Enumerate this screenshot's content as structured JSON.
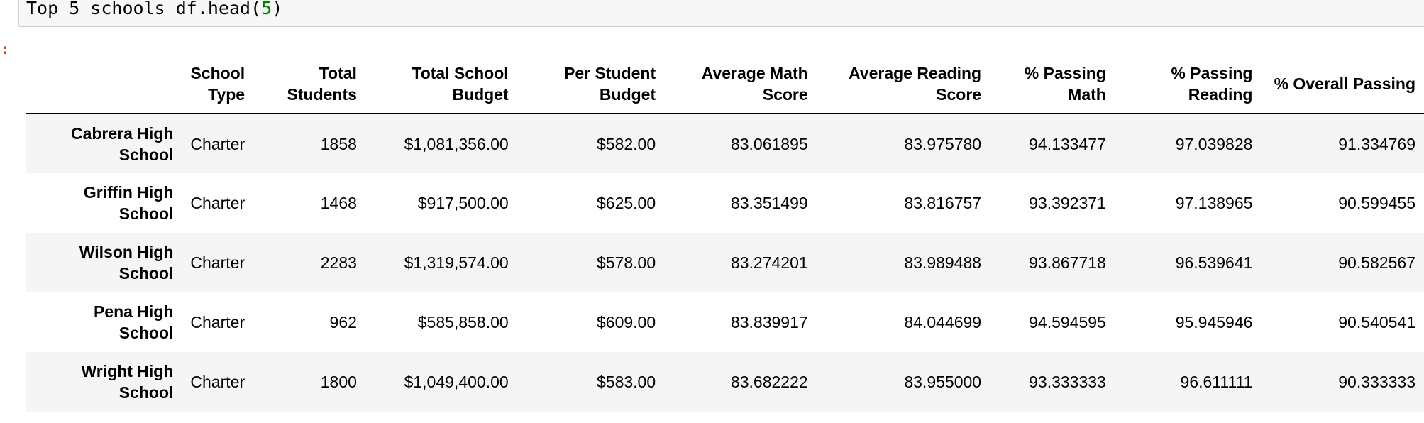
{
  "code_cell": {
    "prefix": "Top_5_schools_df.head(",
    "argument": "5",
    "suffix": ")"
  },
  "output_prompt": ":",
  "table": {
    "columns": [
      "",
      "School Type",
      "Total Students",
      "Total School Budget",
      "Per Student Budget",
      "Average Math Score",
      "Average Reading Score",
      "% Passing Math",
      "% Passing Reading",
      "% Overall Passing"
    ],
    "rows": [
      {
        "index": "Cabrera High School",
        "cells": [
          "Charter",
          "1858",
          "$1,081,356.00",
          "$582.00",
          "83.061895",
          "83.975780",
          "94.133477",
          "97.039828",
          "91.334769"
        ]
      },
      {
        "index": "Griffin High School",
        "cells": [
          "Charter",
          "1468",
          "$917,500.00",
          "$625.00",
          "83.351499",
          "83.816757",
          "93.392371",
          "97.138965",
          "90.599455"
        ]
      },
      {
        "index": "Wilson High School",
        "cells": [
          "Charter",
          "2283",
          "$1,319,574.00",
          "$578.00",
          "83.274201",
          "83.989488",
          "93.867718",
          "96.539641",
          "90.582567"
        ]
      },
      {
        "index": "Pena High School",
        "cells": [
          "Charter",
          "962",
          "$585,858.00",
          "$609.00",
          "83.839917",
          "84.044699",
          "94.594595",
          "95.945946",
          "90.540541"
        ]
      },
      {
        "index": "Wright High School",
        "cells": [
          "Charter",
          "1800",
          "$1,049,400.00",
          "$583.00",
          "83.682222",
          "83.955000",
          "93.333333",
          "96.611111",
          "90.333333"
        ]
      }
    ]
  }
}
